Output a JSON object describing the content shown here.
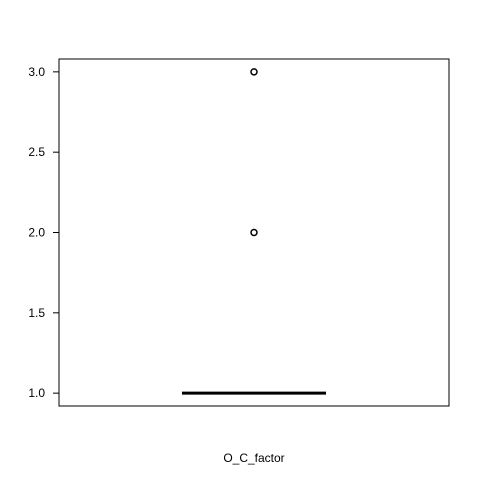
{
  "chart_data": {
    "type": "boxplot",
    "xlabel": "O_C_factor",
    "ylabel": "",
    "ylim": [
      0.92,
      3.08
    ],
    "yticks": [
      1.0,
      1.5,
      2.0,
      2.5,
      3.0
    ],
    "ytick_labels": [
      "1.0",
      "1.5",
      "2.0",
      "2.5",
      "3.0"
    ],
    "grid": false,
    "box": {
      "min": 1.0,
      "q1": 1.0,
      "median": 1.0,
      "q3": 1.0,
      "max": 1.0,
      "outliers": [
        2.0,
        3.0
      ]
    }
  }
}
